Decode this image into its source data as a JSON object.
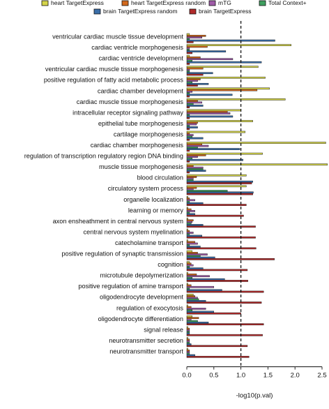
{
  "chart_data": {
    "type": "bar",
    "orientation": "horizontal",
    "xlabel": "-log10(p.val)",
    "xlim": [
      0,
      2.5
    ],
    "xticks": [
      0.0,
      0.5,
      1.0,
      1.5,
      2.0,
      2.5
    ],
    "xtick_labels": [
      "0.0",
      "0.5",
      "1.0",
      "1.5",
      "2.0",
      "2.5"
    ],
    "threshold": 1.0,
    "threshold_style": "dashed",
    "legend_position": "top",
    "categories": [
      "ventricular cardiac muscle tissue development",
      "cardiac ventricle morphogenesis",
      "cardiac ventricle development",
      "ventricular cardiac muscle tissue morphogenesis",
      "positive regulation of fatty acid metabolic process",
      "cardiac chamber development",
      "cardiac muscle tissue morphogenesis",
      "intracellular receptor signaling pathway",
      "epithelial tube morphogenesis",
      "cartilage morphogenesis",
      "cardiac chamber morphogenesis",
      "regulation of transcription regulatory region DNA binding",
      "muscle tissue morphogenesis",
      "blood circulation",
      "circulatory system process",
      "organelle localization",
      "learning or memory",
      "axon ensheathment in central nervous system",
      "central nervous system myelination",
      "catecholamine transport",
      "positive regulation of synaptic transmission",
      "cognition",
      "microtubule depolymerization",
      "positive regulation of amine transport",
      "oligodendrocyte development",
      "regulation of exocytosis",
      "oligodendrocyte differentiation",
      "signal release",
      "neurotransmitter secretion",
      "neurotransmitter transport"
    ],
    "series": [
      {
        "name": "heart TargetExpress",
        "color": "#d4d44a",
        "values": [
          0.05,
          1.93,
          0.05,
          1.32,
          1.45,
          1.53,
          1.82,
          1.0,
          1.22,
          1.08,
          2.57,
          1.4,
          2.6,
          1.1,
          1.1,
          0.02,
          0.02,
          0.02,
          0.02,
          0.02,
          0.1,
          0.05,
          0.02,
          0.02,
          0.12,
          0.02,
          0.1,
          0.02,
          0.02,
          0.02
        ]
      },
      {
        "name": "heart TargetExpress random",
        "color": "#d2691e",
        "values": [
          0.35,
          0.38,
          0.25,
          0.3,
          0.25,
          1.3,
          0.2,
          0.75,
          0.2,
          0.05,
          0.28,
          0.35,
          0.12,
          0.18,
          0.18,
          0.05,
          0.08,
          0.12,
          0.05,
          0.15,
          0.2,
          0.08,
          0.18,
          0.08,
          0.15,
          0.08,
          0.22,
          0.05,
          0.05,
          0.05
        ]
      },
      {
        "name": "mTG",
        "color": "#a05ca8",
        "values": [
          0.28,
          0.05,
          0.85,
          0.05,
          0.2,
          0.1,
          0.28,
          0.8,
          0.18,
          0.12,
          0.4,
          0.2,
          0.3,
          0.12,
          0.12,
          0.15,
          0.15,
          0.1,
          0.12,
          0.2,
          0.38,
          0.12,
          0.42,
          0.5,
          0.2,
          0.35,
          0.08,
          0.05,
          0.05,
          0.05
        ]
      },
      {
        "name": "Total Context+",
        "color": "#3f9f5f",
        "values": [
          0.05,
          0.05,
          0.1,
          0.05,
          0.1,
          0.05,
          0.12,
          0.05,
          0.05,
          0.1,
          0.2,
          0.1,
          0.3,
          0.12,
          0.75,
          0.05,
          0.05,
          0.08,
          0.05,
          0.05,
          0.25,
          0.05,
          0.1,
          0.05,
          0.22,
          0.1,
          0.2,
          0.05,
          0.05,
          0.05
        ]
      },
      {
        "name": "brain TargetExpress random",
        "color": "#3a6ea8",
        "values": [
          1.63,
          0.72,
          1.38,
          0.48,
          0.4,
          0.84,
          0.3,
          0.85,
          0.2,
          0.3,
          0.98,
          1.04,
          0.35,
          1.22,
          1.23,
          0.3,
          0.15,
          0.3,
          0.28,
          0.25,
          0.52,
          0.3,
          0.7,
          0.65,
          0.35,
          0.5,
          0.4,
          0.05,
          0.08,
          0.15
        ]
      },
      {
        "name": "brain TargetExpress",
        "color": "#b02a2a",
        "values": [
          0.12,
          0.1,
          0.05,
          0.3,
          0.2,
          0.05,
          0.05,
          0.05,
          0.05,
          0.05,
          0.05,
          0.05,
          0.05,
          1.2,
          1.22,
          1.1,
          1.05,
          1.27,
          1.27,
          1.28,
          1.62,
          1.12,
          1.13,
          1.42,
          1.38,
          1.0,
          1.42,
          1.4,
          1.12,
          1.15
        ]
      }
    ]
  }
}
